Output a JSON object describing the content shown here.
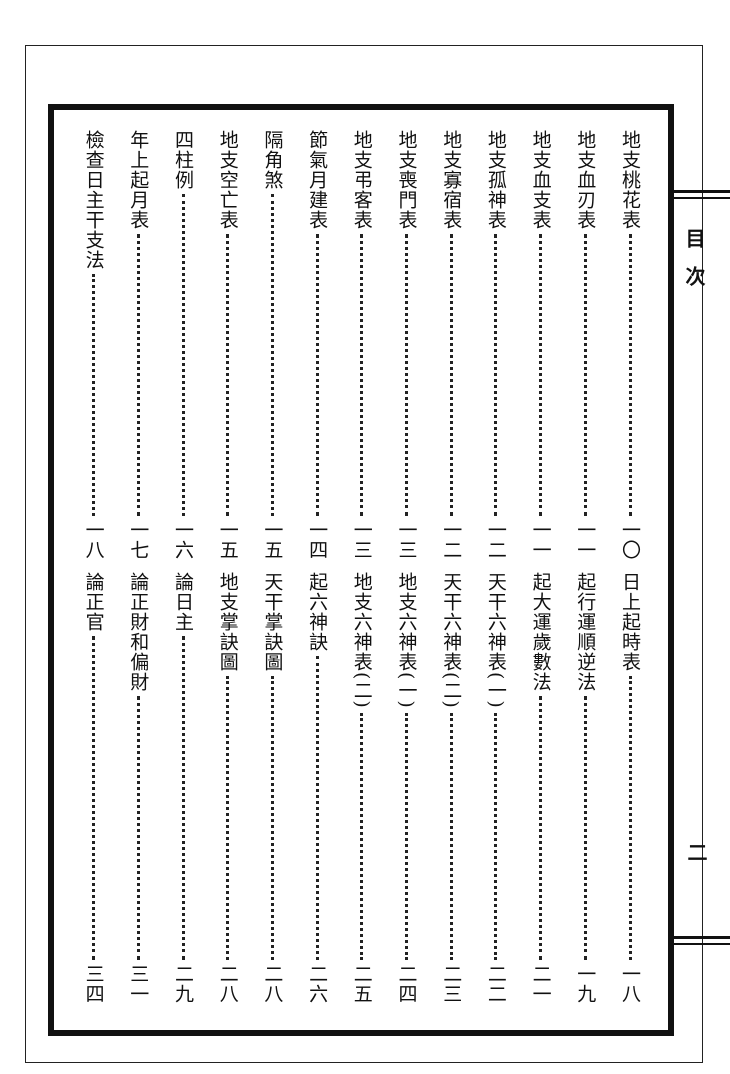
{
  "margin": {
    "title": "目次",
    "page": "二"
  },
  "toc": {
    "top": [
      {
        "title": "地支桃花表",
        "page": "一〇"
      },
      {
        "title": "地支血刃表",
        "page": "一一"
      },
      {
        "title": "地支血支表",
        "page": "一一"
      },
      {
        "title": "地支孤神表",
        "page": "一二"
      },
      {
        "title": "地支寡宿表",
        "page": "一二"
      },
      {
        "title": "地支喪門表",
        "page": "一三"
      },
      {
        "title": "地支弔客表",
        "page": "一三"
      },
      {
        "title": "節氣月建表",
        "page": "一四"
      },
      {
        "title": "隔角煞",
        "page": "一五"
      },
      {
        "title": "地支空亡表",
        "page": "一五"
      },
      {
        "title": "四柱例",
        "page": "一六"
      },
      {
        "title": "年上起月表",
        "page": "一七"
      },
      {
        "title": "檢查日主干支法",
        "page": "一八"
      }
    ],
    "bottom": [
      {
        "title": "日上起時表",
        "page": "一八"
      },
      {
        "title": "起行運順逆法",
        "page": "一九"
      },
      {
        "title": "起大運歲數法",
        "page": "二一"
      },
      {
        "title": "天干六神表(一)",
        "page": "二二"
      },
      {
        "title": "天干六神表(二)",
        "page": "二三"
      },
      {
        "title": "地支六神表(一)",
        "page": "二四"
      },
      {
        "title": "地支六神表(二)",
        "page": "二五"
      },
      {
        "title": "起六神訣",
        "page": "二六"
      },
      {
        "title": "天干掌訣圖",
        "page": "二八"
      },
      {
        "title": "地支掌訣圖",
        "page": "二八"
      },
      {
        "title": "論日主",
        "page": "二九"
      },
      {
        "title": "論正財和偏財",
        "page": "三一"
      },
      {
        "title": "論正官",
        "page": "三四"
      }
    ]
  }
}
